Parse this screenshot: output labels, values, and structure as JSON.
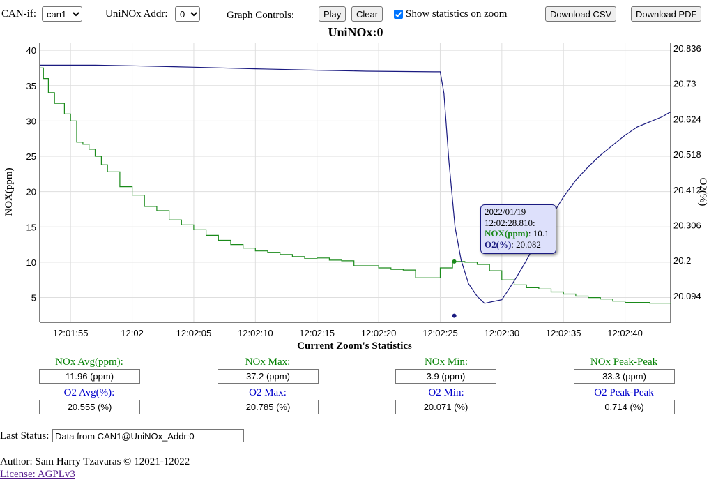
{
  "controls": {
    "can_if_label": "CAN-if:",
    "can_if_value": "can1",
    "addr_label": "UniNOx Addr:",
    "addr_value": "0",
    "graph_controls_label": "Graph Controls:",
    "play_label": "Play",
    "clear_label": "Clear",
    "show_stats_label": "Show statistics on zoom",
    "show_stats_checked": true,
    "download_csv_label": "Download CSV",
    "download_pdf_label": "Download PDF"
  },
  "chart_data": {
    "type": "line",
    "title": "UniNOx:0",
    "ylabel": "NOX(ppm)",
    "y2label": "O2(%)",
    "ylim": [
      1.5,
      41
    ],
    "y2lim": [
      20.0144,
      20.8506
    ],
    "xlim_seconds": [
      -2.5,
      48.7
    ],
    "yticks": [
      40,
      35,
      30,
      25,
      20,
      15,
      10,
      5
    ],
    "y2ticks": [
      "20.836",
      "20.73",
      "20.624",
      "20.518",
      "20.412",
      "20.306",
      "20.2",
      "20.094"
    ],
    "xticks": [
      "12:01:55",
      "12:02",
      "12:02:05",
      "12:02:10",
      "12:02:15",
      "12:02:20",
      "12:02:25",
      "12:02:30",
      "12:02:35",
      "12:02:40",
      "12:02:45"
    ],
    "xtick_seconds": [
      0,
      5,
      10,
      15,
      20,
      25,
      30,
      35,
      40,
      45,
      50
    ],
    "series": [
      {
        "name": "NOX(ppm)",
        "color": "#1a8a1a",
        "axis": "left",
        "x": [
          -2.5,
          -2.2,
          -1.8,
          -1.3,
          -0.5,
          0,
          0.5,
          1,
          1.5,
          2,
          2.5,
          3,
          4,
          5,
          6,
          7,
          8,
          9,
          10,
          11,
          12,
          13,
          14,
          15,
          16,
          17,
          18,
          19,
          20,
          21,
          22,
          23,
          24,
          25,
          26,
          27,
          28,
          29,
          30,
          31,
          32,
          33,
          34,
          35,
          36,
          37,
          38,
          39,
          40,
          41,
          42,
          43,
          44,
          45,
          46,
          47,
          48.7
        ],
        "y": [
          37.5,
          36,
          34,
          32.5,
          31,
          30,
          27,
          26.7,
          26,
          25,
          23.8,
          22.8,
          20.7,
          19.5,
          17.9,
          17.3,
          16,
          15.3,
          14.6,
          13.8,
          13.1,
          12.5,
          12,
          11.6,
          11.4,
          11.1,
          10.8,
          10.5,
          10.6,
          10.3,
          10.2,
          9.5,
          9.5,
          9.2,
          9,
          8.9,
          7.8,
          7.8,
          9.2,
          10.1,
          10,
          9.7,
          8.8,
          7.5,
          6.8,
          6.4,
          6.2,
          5.8,
          5.5,
          5.2,
          5,
          4.8,
          4.5,
          4.3,
          4.3,
          4.2,
          4.3
        ]
      },
      {
        "name": "O2(%)",
        "color": "#1a1a80",
        "axis": "right",
        "x": [
          -2.5,
          2,
          5,
          10,
          15,
          20,
          24,
          29.5,
          30,
          30.3,
          30.7,
          31.2,
          31.7,
          32.3,
          33,
          33.6,
          34.2,
          35,
          35.6,
          36.2,
          37,
          38,
          39,
          40,
          41,
          42,
          43,
          44,
          45,
          46,
          47,
          48,
          48.7
        ],
        "y": [
          20.785,
          20.785,
          20.783,
          20.779,
          20.774,
          20.77,
          20.767,
          20.765,
          20.765,
          20.7,
          20.5,
          20.3,
          20.2,
          20.13,
          20.092,
          20.071,
          20.076,
          20.082,
          20.115,
          20.15,
          20.2,
          20.27,
          20.33,
          20.39,
          20.44,
          20.48,
          20.515,
          20.545,
          20.575,
          20.6,
          20.615,
          20.63,
          20.645
        ]
      }
    ],
    "annotations": [
      {
        "date": "2022/01/19",
        "time": "12:02:28.810:",
        "nox_label": "NOX(ppm)",
        "nox_value": ": 10.1",
        "o2_label": "O2(%)",
        "o2_value": ": 20.082",
        "x_seconds": 33.8,
        "nox": 10.1,
        "o2": 20.082
      }
    ]
  },
  "stats": {
    "heading": "Current Zoom's Statistics",
    "nox": [
      {
        "label": "NOx Avg(ppm):",
        "value": "11.96 (ppm)"
      },
      {
        "label": "NOx Max:",
        "value": "37.2 (ppm)"
      },
      {
        "label": "NOx Min:",
        "value": "3.9 (ppm)"
      },
      {
        "label": "NOx Peak-Peak",
        "value": "33.3 (ppm)"
      }
    ],
    "o2": [
      {
        "label": "O2 Avg(%):",
        "value": "20.555 (%)"
      },
      {
        "label": "O2 Max:",
        "value": "20.785 (%)"
      },
      {
        "label": "O2 Min:",
        "value": "20.071 (%)"
      },
      {
        "label": "O2 Peak-Peak",
        "value": "0.714 (%)"
      }
    ]
  },
  "status": {
    "label": "Last Status:",
    "value": "Data from CAN1@UniNOx_Addr:0"
  },
  "footer": {
    "author": "Author: Sam Harry Tzavaras © 12021-12022",
    "license": "License: AGPLv3"
  },
  "colors": {
    "nox": "#1a8a1a",
    "o2": "#1a1a80",
    "nox_label": "#008000",
    "o2_label": "#0000cc",
    "tooltip_bg": "#dde0fb"
  }
}
